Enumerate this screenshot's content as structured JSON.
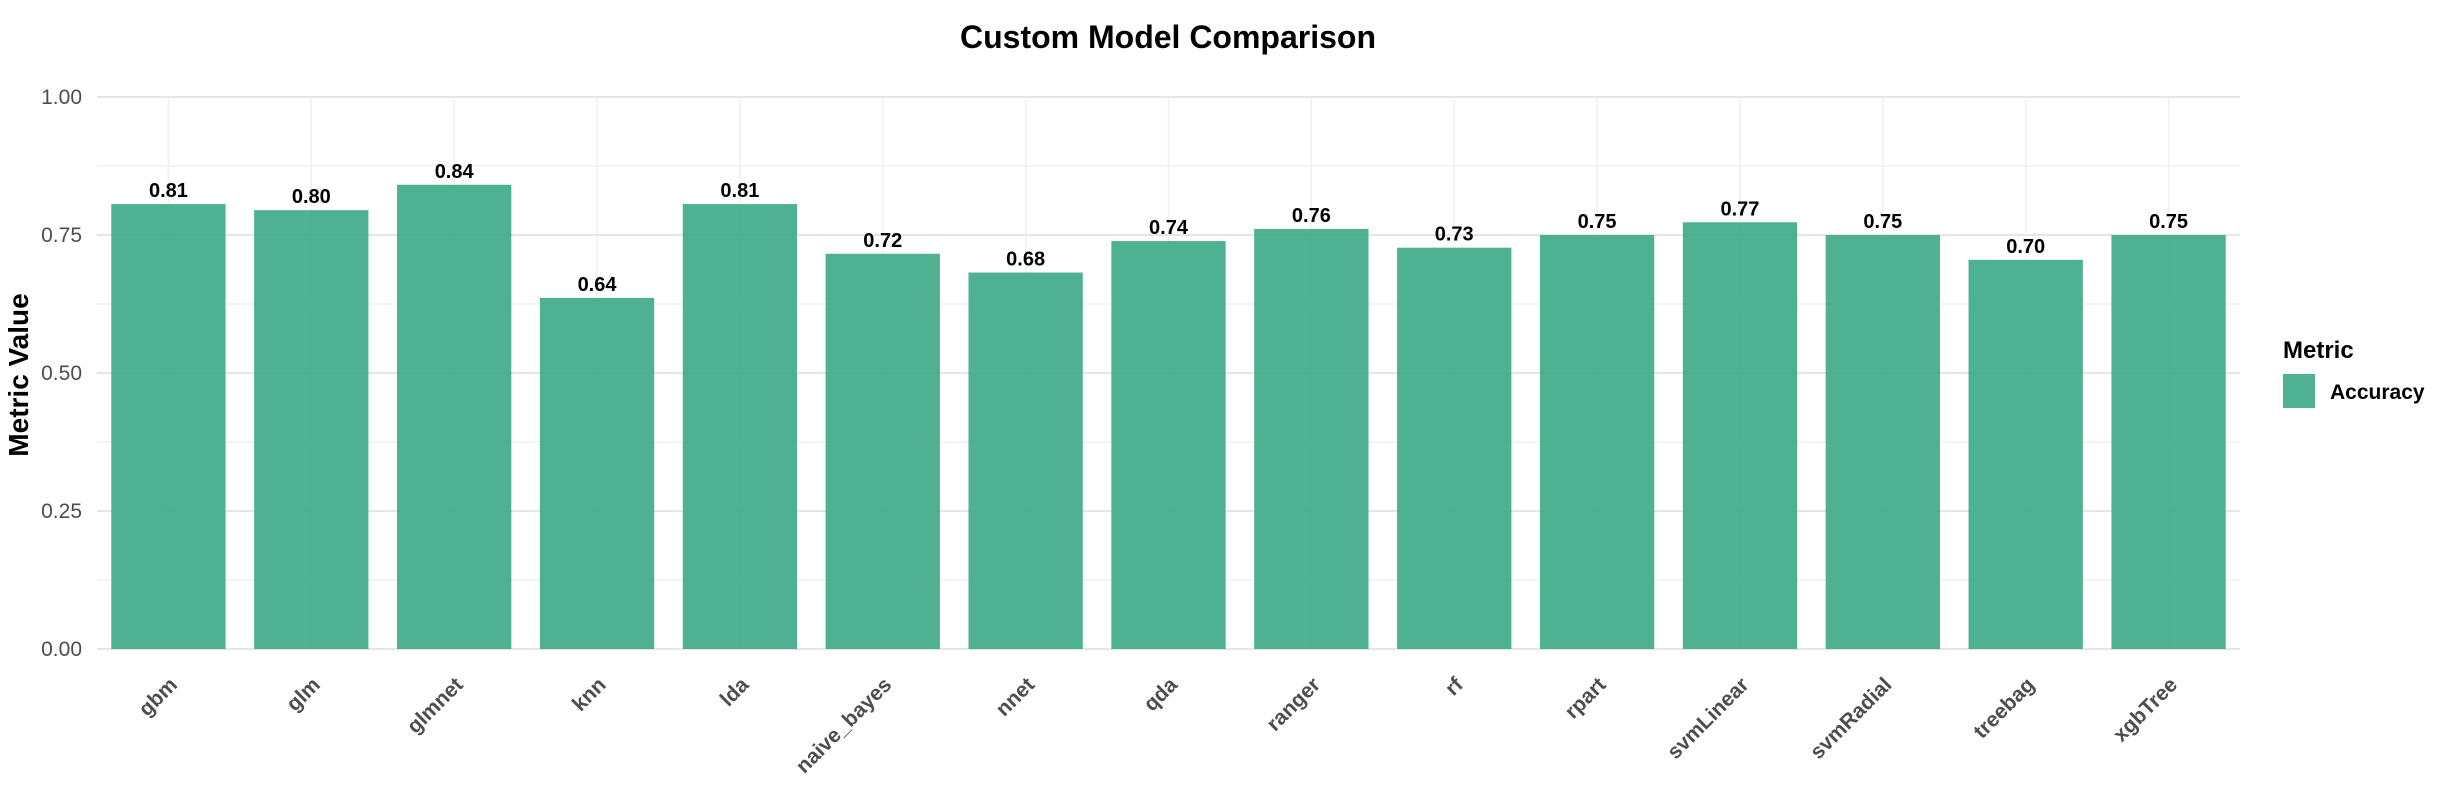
{
  "chart_data": {
    "type": "bar",
    "title": "Custom Model Comparison",
    "xlabel": "",
    "ylabel": "Metric Value",
    "categories": [
      "gbm",
      "glm",
      "glmnet",
      "knn",
      "lda",
      "naive_bayes",
      "nnet",
      "qda",
      "ranger",
      "rf",
      "rpart",
      "svmLinear",
      "svmRadial",
      "treebag",
      "xgbTree"
    ],
    "series": [
      {
        "name": "Accuracy",
        "values": [
          0.806,
          0.795,
          0.841,
          0.636,
          0.806,
          0.716,
          0.682,
          0.739,
          0.761,
          0.727,
          0.75,
          0.773,
          0.75,
          0.705,
          0.75
        ],
        "labels": [
          "0.81",
          "0.80",
          "0.84",
          "0.64",
          "0.81",
          "0.72",
          "0.68",
          "0.74",
          "0.76",
          "0.73",
          "0.75",
          "0.77",
          "0.75",
          "0.70",
          "0.75"
        ],
        "color": "#3aa886"
      }
    ],
    "ylim": [
      0,
      1
    ],
    "yticks": [
      0,
      0.25,
      0.5,
      0.75,
      1
    ],
    "ytick_labels": [
      "0.00",
      "0.25",
      "0.50",
      "0.75",
      "1.00"
    ],
    "grid": true,
    "legend": {
      "title": "Metric",
      "position": "right"
    }
  }
}
